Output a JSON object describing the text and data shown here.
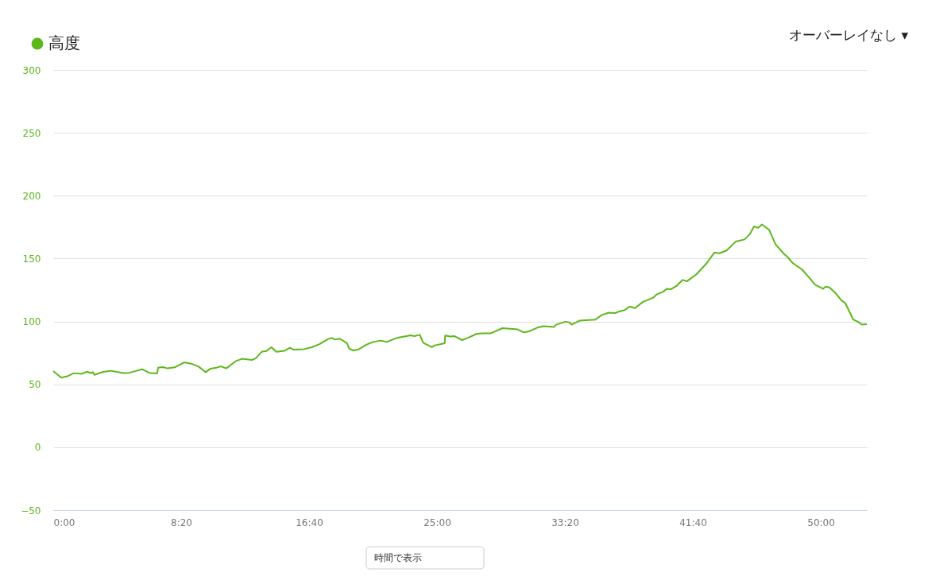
{
  "chart_data": {
    "type": "line",
    "x": [
      0,
      31,
      56,
      81,
      112,
      133,
      146,
      155,
      161,
      195,
      226,
      273,
      298,
      320,
      347,
      375,
      406,
      410,
      428,
      447,
      475,
      512,
      543,
      568,
      596,
      614,
      639,
      655,
      676,
      714,
      738,
      776,
      791,
      816,
      831,
      853,
      872,
      903,
      925,
      940,
      980,
      1011,
      1042,
      1073,
      1089,
      1101,
      1120,
      1148,
      1157,
      1173,
      1194,
      1225,
      1250,
      1281,
      1303,
      1343,
      1396,
      1412,
      1433,
      1446,
      1480,
      1492,
      1530,
      1532,
      1551,
      1567,
      1598,
      1623,
      1654,
      1675,
      1709,
      1756,
      1815,
      1840,
      1861,
      1892,
      1917,
      1958,
      1964,
      2001,
      2017,
      2026,
      2057,
      2119,
      2144,
      2172,
      2197,
      2212,
      2234,
      2252,
      2274,
      2305,
      2345,
      2358,
      2383,
      2398,
      2414,
      2438,
      2460,
      2476,
      2513,
      2553,
      2584,
      2603,
      2631,
      2668,
      2702,
      2724,
      2739,
      2755,
      2770,
      2798,
      2823,
      2854,
      2873,
      2891,
      2926,
      2957,
      2978,
      3009,
      3019,
      3034,
      3059,
      3081,
      3096,
      3127,
      3143,
      3161,
      3180
    ],
    "series": [
      {
        "name": "高度",
        "color": "#5cb71a",
        "values": [
          60.5,
          55.4,
          56.5,
          58.9,
          58.4,
          60.1,
          59,
          59.7,
          57.6,
          59.9,
          60.8,
          59,
          59.2,
          60.5,
          62,
          59.2,
          58.6,
          63.3,
          63.7,
          62.7,
          63.5,
          67.5,
          66.2,
          64.1,
          59.7,
          62.4,
          63.3,
          64.3,
          62.7,
          68.5,
          70.3,
          69.4,
          70.6,
          76.1,
          76.3,
          79.5,
          75.9,
          76.6,
          79.1,
          77.6,
          78,
          79.5,
          82.1,
          85.9,
          86.9,
          85.6,
          86.3,
          82.7,
          78.3,
          77,
          77.8,
          81.6,
          83.7,
          84.8,
          83.7,
          86.9,
          89,
          88.4,
          89.4,
          83.1,
          79.6,
          81,
          82.7,
          88.8,
          88,
          88.4,
          85.2,
          87.2,
          90.1,
          90.5,
          90.5,
          94.7,
          93.7,
          91.3,
          92.2,
          95.1,
          96.2,
          95.6,
          97.3,
          99.8,
          99.2,
          97.5,
          100.6,
          101.5,
          105.2,
          107,
          106.7,
          108,
          109,
          111.9,
          110.6,
          115.6,
          118.9,
          121.4,
          123.5,
          126,
          125.6,
          128.6,
          133.1,
          131.9,
          137.3,
          146,
          154.8,
          154.2,
          156.3,
          163.6,
          165.2,
          169.8,
          175.6,
          174.4,
          177.1,
          172.9,
          161.4,
          154.2,
          150.6,
          146.3,
          141.4,
          134.4,
          129.2,
          126,
          127.7,
          127.1,
          122.3,
          116.7,
          114.6,
          101.5,
          100,
          97.5,
          97.9
        ]
      }
    ],
    "xlim": [
      0,
      3180
    ],
    "xticks": [
      {
        "value": 0,
        "label": "0:00"
      },
      {
        "value": 500,
        "label": "8:20"
      },
      {
        "value": 1000,
        "label": "16:40"
      },
      {
        "value": 1500,
        "label": "25:00"
      },
      {
        "value": 2000,
        "label": "33:20"
      },
      {
        "value": 2500,
        "label": "41:40"
      },
      {
        "value": 3000,
        "label": "50:00"
      }
    ],
    "ylim": [
      -50,
      300
    ],
    "yticks": [
      -50,
      0,
      50,
      100,
      150,
      200,
      250,
      300
    ],
    "grid": "y",
    "legend": "top left",
    "marker": "none",
    "line_style": "solid",
    "annotations": [
      "オーバーレイなし ▾",
      "時間で表示"
    ]
  }
}
